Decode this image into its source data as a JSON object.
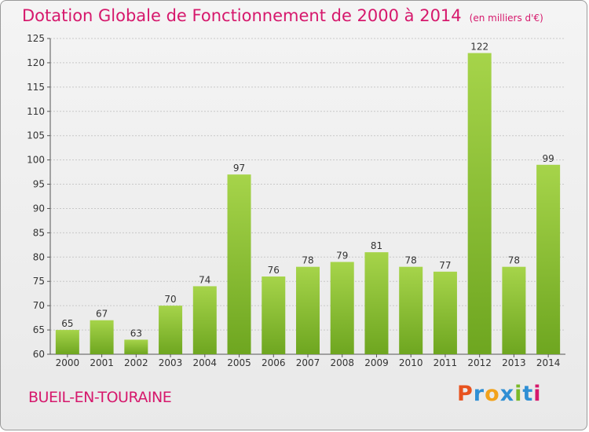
{
  "title": "Dotation Globale de Fonctionnement de 2000 à 2014",
  "unit_note": "(en milliers d'€)",
  "commune": "BUEIL-EN-TOURAINE",
  "logo": {
    "letters": [
      "P",
      "r",
      "o",
      "x",
      "i",
      "t",
      "i"
    ],
    "colors": [
      "#e8531f",
      "#2f8fd4",
      "#f2a21b",
      "#2f8fd4",
      "#7ab929",
      "#2f8fd4",
      "#d6186c"
    ]
  },
  "colors": {
    "accent": "#d6186c",
    "bar_top": "#a6d44a",
    "bar_bottom": "#6ea620",
    "grid": "#c8c8c8",
    "axis": "#555555"
  },
  "chart_data": {
    "type": "bar",
    "categories": [
      "2000",
      "2001",
      "2002",
      "2003",
      "2004",
      "2005",
      "2006",
      "2007",
      "2008",
      "2009",
      "2010",
      "2011",
      "2012",
      "2013",
      "2014"
    ],
    "values": [
      65,
      67,
      63,
      70,
      74,
      97,
      76,
      78,
      79,
      81,
      78,
      77,
      122,
      78,
      99
    ],
    "ylim": [
      60,
      125
    ],
    "yticks": [
      60,
      65,
      70,
      75,
      80,
      85,
      90,
      95,
      100,
      105,
      110,
      115,
      120,
      125
    ],
    "grid": true,
    "xlabel": "",
    "ylabel": ""
  }
}
